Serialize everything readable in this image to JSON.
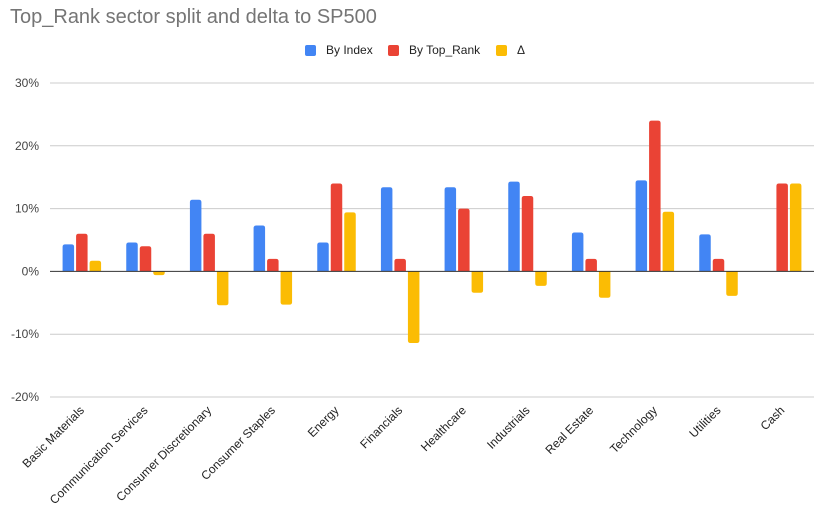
{
  "chart_data": {
    "type": "bar",
    "title": "Top_Rank sector split and delta to SP500",
    "xlabel": "",
    "ylabel": "",
    "ylim": [
      -20,
      30
    ],
    "yticks": [
      30,
      20,
      10,
      0,
      -10,
      -20
    ],
    "ytick_labels": [
      "30%",
      "20%",
      "10%",
      "0%",
      "-10%",
      "-20%"
    ],
    "grid": true,
    "legend_position": "top-center",
    "categories": [
      "Basic Materials",
      "Communication Services",
      "Consumer Discretionary",
      "Consumer Staples",
      "Energy",
      "Financials",
      "Healthcare",
      "Industrials",
      "Real Estate",
      "Technology",
      "Utilities",
      "Cash"
    ],
    "series": [
      {
        "name": "By Index",
        "color": "#4285f4",
        "values": [
          4.3,
          4.6,
          11.4,
          7.3,
          4.6,
          13.4,
          13.4,
          14.3,
          6.2,
          14.5,
          5.9,
          0
        ]
      },
      {
        "name": "By Top_Rank",
        "color": "#ea4335",
        "values": [
          6.0,
          4.0,
          6.0,
          2.0,
          14.0,
          2.0,
          10.0,
          12.0,
          2.0,
          24.0,
          2.0,
          14.0
        ]
      },
      {
        "name": "Δ",
        "color": "#fbbc04",
        "values": [
          1.7,
          -0.6,
          -5.4,
          -5.3,
          9.4,
          -11.4,
          -3.4,
          -2.3,
          -4.2,
          9.5,
          -3.9,
          14.0
        ]
      }
    ]
  }
}
